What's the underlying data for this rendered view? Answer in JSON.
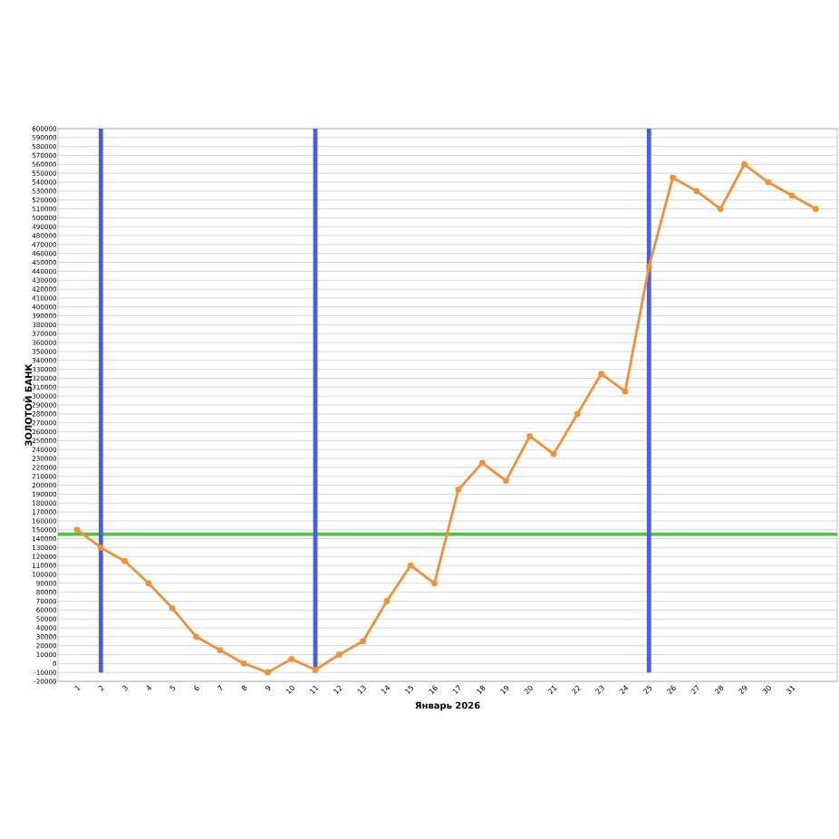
{
  "chart_data": {
    "type": "line",
    "xlabel": "Январь 2026",
    "ylabel": "ЗОЛОТОЙ БАНК",
    "categories": [
      "1",
      "2",
      "3",
      "4",
      "5",
      "6",
      "7",
      "8",
      "9",
      "10",
      "11",
      "12",
      "13",
      "14",
      "15",
      "16",
      "17",
      "18",
      "19",
      "20",
      "21",
      "22",
      "23",
      "24",
      "25",
      "26",
      "27",
      "28",
      "29",
      "30",
      "31",
      null
    ],
    "series": [
      {
        "color": "#f0913a",
        "values": [
          150000,
          130000,
          115000,
          90000,
          62000,
          30000,
          15000,
          0,
          -10000,
          5000,
          -7000,
          10000,
          25000,
          70000,
          110000,
          90000,
          195000,
          225000,
          205000,
          255000,
          235000,
          280000,
          325000,
          305000,
          445000,
          545000,
          530000,
          510000,
          560000,
          540000,
          525000,
          510000
        ]
      }
    ],
    "ylim": [
      -20000,
      600000
    ],
    "yticks": [
      -20000,
      -10000,
      0,
      10000,
      20000,
      30000,
      40000,
      50000,
      60000,
      70000,
      80000,
      90000,
      100000,
      110000,
      120000,
      130000,
      140000,
      150000,
      160000,
      170000,
      180000,
      190000,
      200000,
      210000,
      220000,
      230000,
      240000,
      250000,
      260000,
      270000,
      280000,
      290000,
      300000,
      310000,
      320000,
      330000,
      340000,
      350000,
      360000,
      370000,
      380000,
      390000,
      400000,
      410000,
      420000,
      430000,
      440000,
      450000,
      460000,
      470000,
      480000,
      490000,
      500000,
      510000,
      520000,
      530000,
      540000,
      550000,
      560000,
      570000,
      580000,
      590000,
      600000
    ],
    "ref_lines": [
      {
        "axis": "y",
        "value": 145000,
        "color": "#4cc43c"
      },
      {
        "axis": "x",
        "value": "2",
        "color": "#4a5fe0"
      },
      {
        "axis": "x",
        "value": "11",
        "color": "#4a5fe0"
      },
      {
        "axis": "x",
        "value": "25",
        "color": "#4a5fe0"
      }
    ],
    "grid": "y",
    "marker": "circle",
    "line_style": "solid"
  }
}
